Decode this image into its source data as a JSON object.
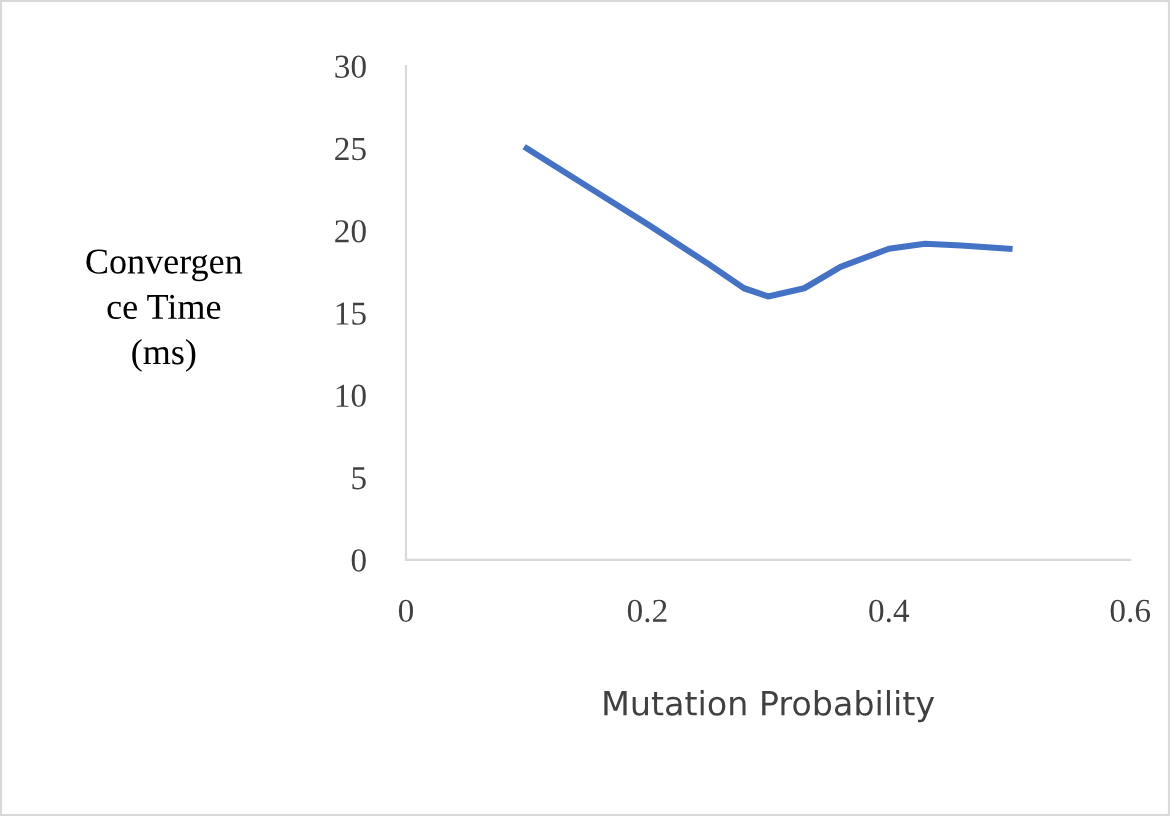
{
  "chart_data": {
    "type": "line",
    "xlabel": "Mutation Probability",
    "ylabel": "Convergen\nce Time\n(ms)",
    "x": [
      0.1,
      0.15,
      0.2,
      0.25,
      0.28,
      0.3,
      0.33,
      0.36,
      0.4,
      0.43,
      0.46,
      0.5
    ],
    "series": [
      {
        "color": "#4472c4",
        "values": [
          25,
          22.7,
          20.4,
          18,
          16.5,
          16,
          16.5,
          17.8,
          18.9,
          19.2,
          19.1,
          18.9
        ]
      }
    ],
    "xlim": [
      0,
      0.6
    ],
    "xticks": [
      0,
      0.2,
      0.4,
      0.6
    ],
    "ylim": [
      0,
      30
    ],
    "yticks": [
      0,
      5,
      10,
      15,
      20,
      25,
      30
    ],
    "grid": false,
    "legend": false,
    "marker": "none",
    "line_style": "solid"
  }
}
